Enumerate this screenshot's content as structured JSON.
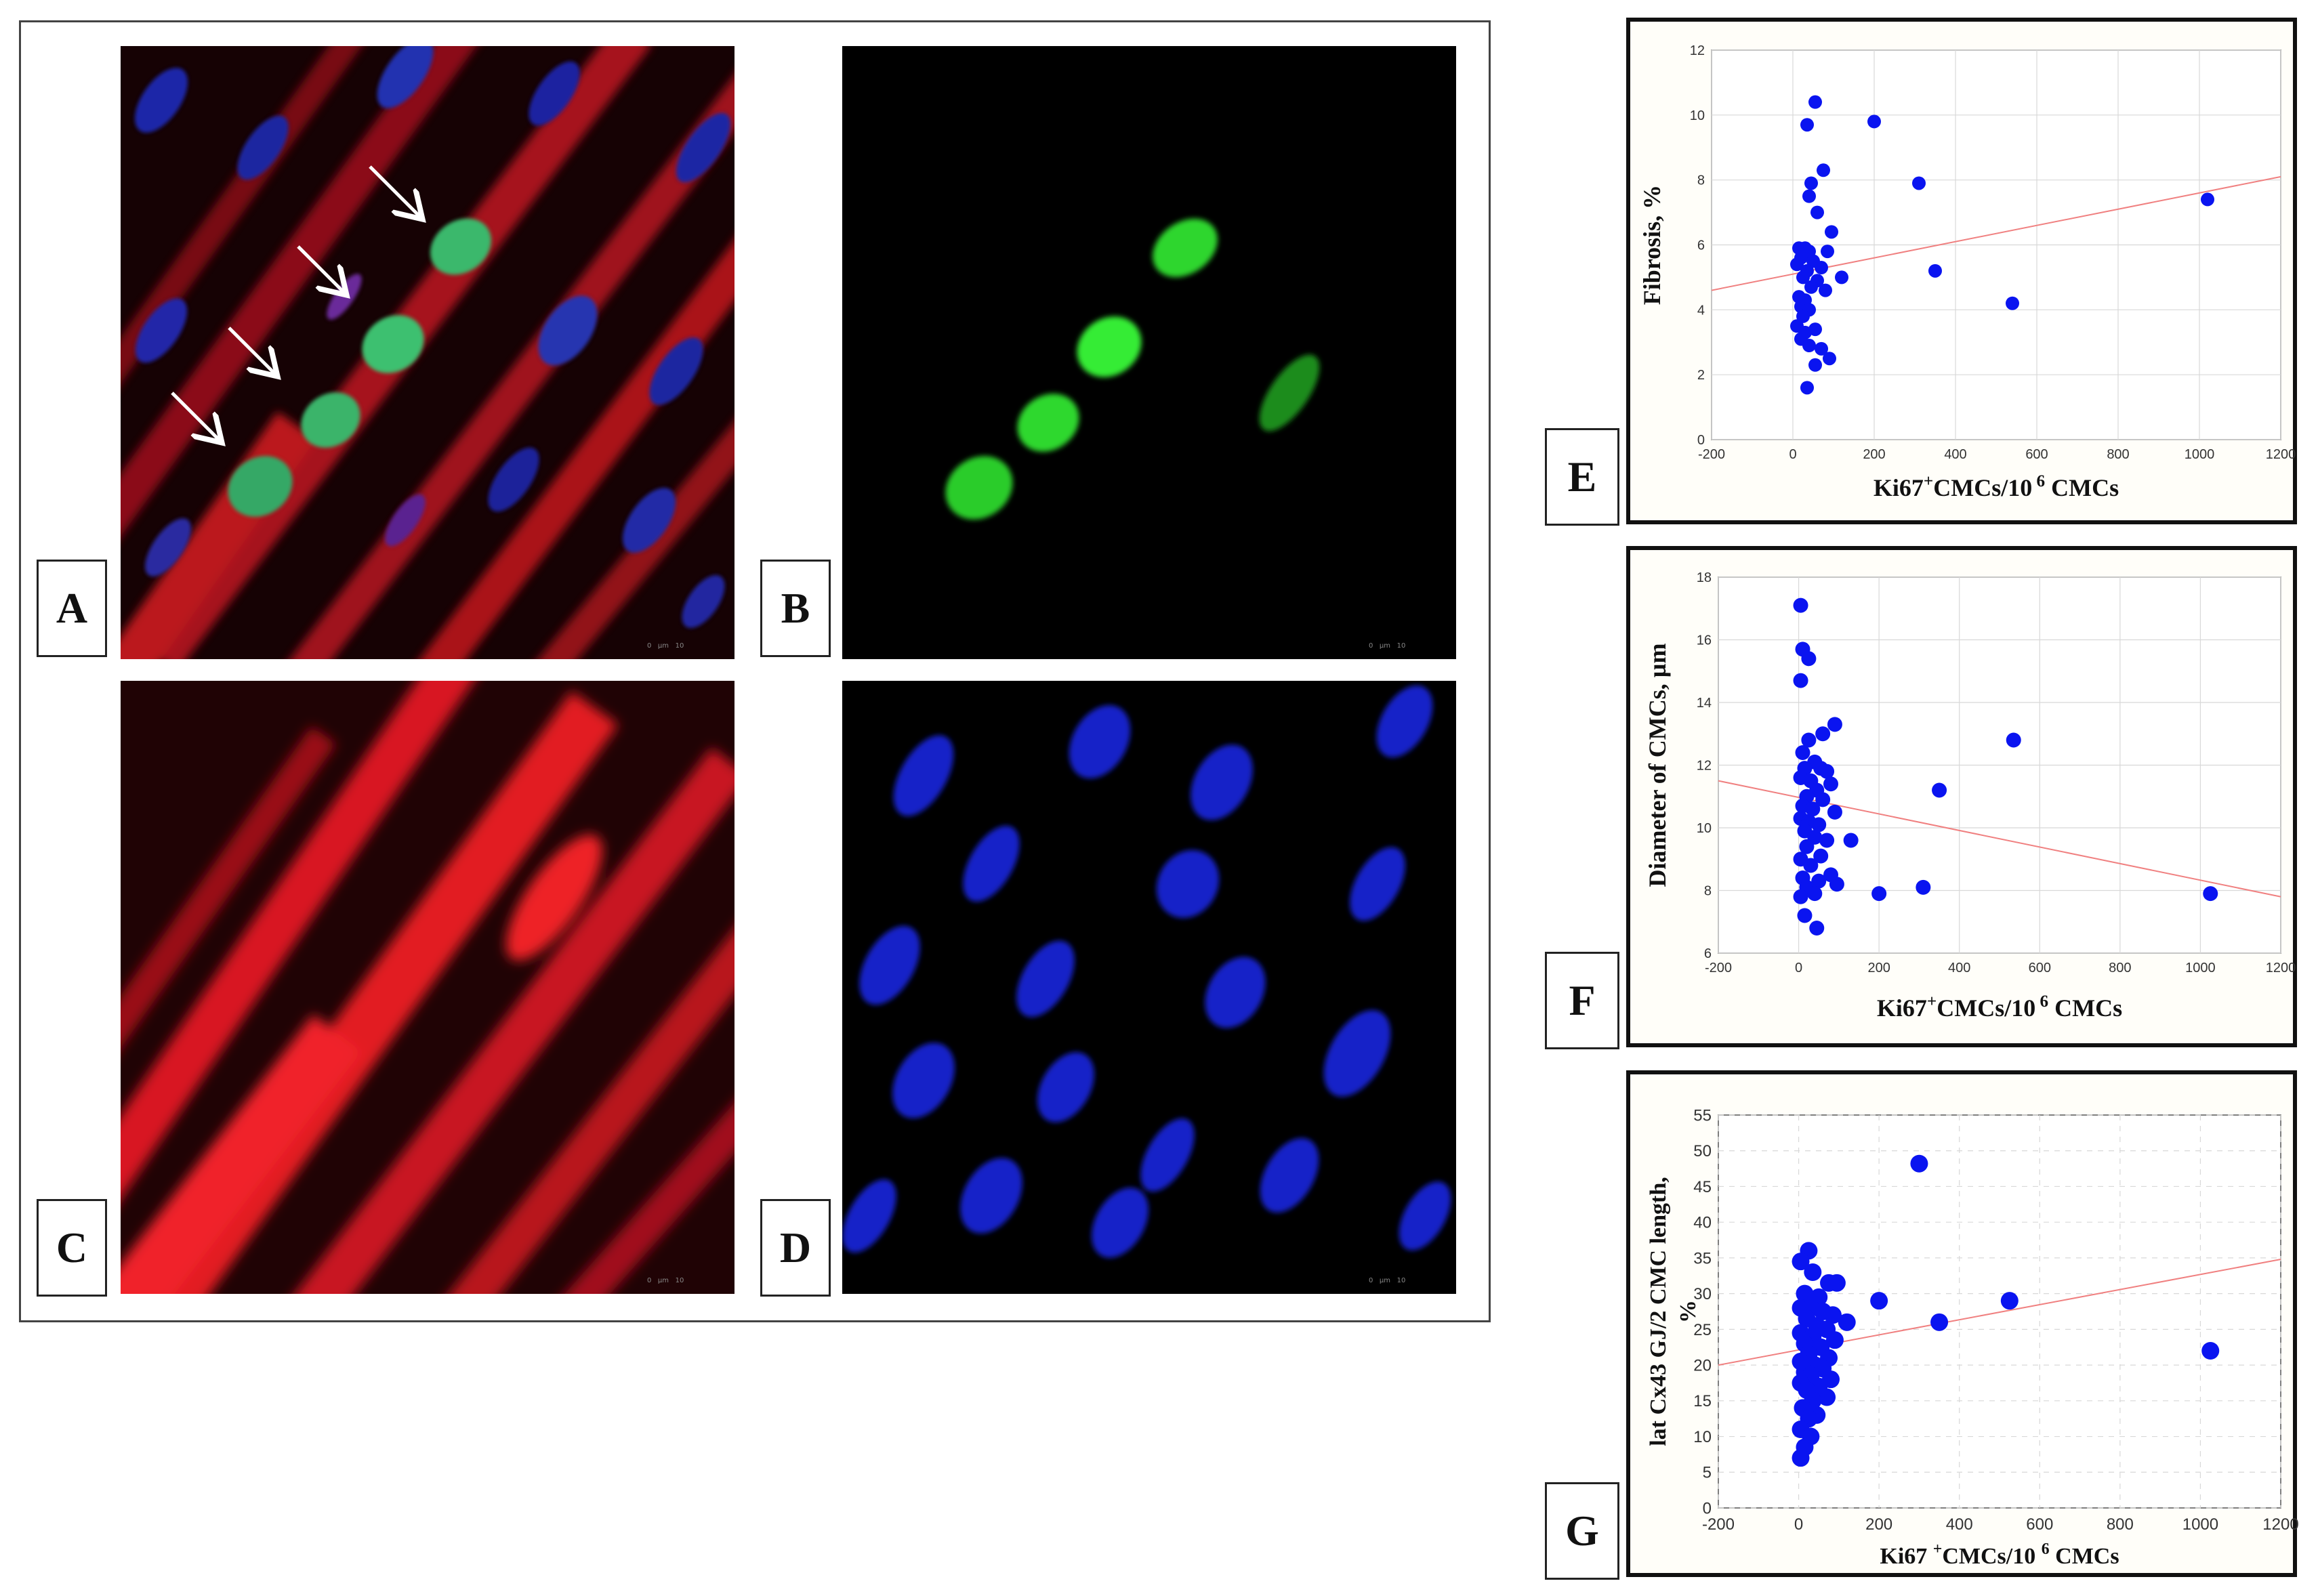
{
  "panels": {
    "a": "A",
    "b": "B",
    "c": "C",
    "d": "D",
    "e": "E",
    "f": "F",
    "g": "G"
  },
  "scale_bar": {
    "zero": "0",
    "unit": "µm",
    "end": "10"
  },
  "colors": {
    "red": "#e01818",
    "green": "#3cf23c",
    "blue": "#1626d6",
    "point": "#0a14f0",
    "trend": "#f08080"
  },
  "chart_data": [
    {
      "id": "E",
      "type": "scatter",
      "ylabel": "Fibrosis, %",
      "xlabel_parts": [
        "Ki67",
        "+",
        "CMCs/10",
        "6",
        "CMCs"
      ],
      "xlim": [
        -200,
        1200
      ],
      "ylim": [
        0,
        12
      ],
      "xticks": [
        -200,
        0,
        200,
        400,
        600,
        800,
        1000,
        1200
      ],
      "yticks": [
        0,
        2,
        4,
        6,
        8,
        10,
        12
      ],
      "grid": true,
      "trend": {
        "x": [
          -200,
          1200
        ],
        "y": [
          4.6,
          8.1
        ]
      },
      "points": [
        [
          55,
          10.4
        ],
        [
          35,
          9.7
        ],
        [
          200,
          9.8
        ],
        [
          75,
          8.3
        ],
        [
          45,
          7.9
        ],
        [
          40,
          7.5
        ],
        [
          310,
          7.9
        ],
        [
          1020,
          7.4
        ],
        [
          60,
          7.0
        ],
        [
          95,
          6.4
        ],
        [
          15,
          5.9
        ],
        [
          30,
          5.9
        ],
        [
          40,
          5.8
        ],
        [
          85,
          5.8
        ],
        [
          20,
          5.6
        ],
        [
          50,
          5.5
        ],
        [
          10,
          5.4
        ],
        [
          70,
          5.3
        ],
        [
          35,
          5.2
        ],
        [
          120,
          5.0
        ],
        [
          350,
          5.2
        ],
        [
          25,
          5.0
        ],
        [
          60,
          4.9
        ],
        [
          45,
          4.7
        ],
        [
          80,
          4.6
        ],
        [
          15,
          4.4
        ],
        [
          30,
          4.3
        ],
        [
          20,
          4.1
        ],
        [
          40,
          4.0
        ],
        [
          25,
          3.8
        ],
        [
          540,
          4.2
        ],
        [
          10,
          3.5
        ],
        [
          30,
          3.3
        ],
        [
          55,
          3.4
        ],
        [
          20,
          3.1
        ],
        [
          40,
          2.9
        ],
        [
          70,
          2.8
        ],
        [
          90,
          2.5
        ],
        [
          55,
          2.3
        ],
        [
          35,
          1.6
        ]
      ]
    },
    {
      "id": "F",
      "type": "scatter",
      "ylabel": "Diameter of CMCs,  µm",
      "xlabel_parts": [
        "Ki67",
        "+",
        "CMCs/10",
        "6",
        "CMCs"
      ],
      "xlim": [
        -200,
        1200
      ],
      "ylim": [
        6,
        18
      ],
      "xticks": [
        -200,
        0,
        200,
        400,
        600,
        800,
        1000,
        1200
      ],
      "yticks": [
        6,
        8,
        10,
        12,
        14,
        16,
        18
      ],
      "grid": true,
      "trend": {
        "x": [
          -200,
          1200
        ],
        "y": [
          11.5,
          7.8
        ]
      },
      "points": [
        [
          5,
          17.1
        ],
        [
          10,
          15.7
        ],
        [
          25,
          15.4
        ],
        [
          5,
          14.7
        ],
        [
          90,
          13.3
        ],
        [
          60,
          13.0
        ],
        [
          25,
          12.8
        ],
        [
          10,
          12.4
        ],
        [
          535,
          12.8
        ],
        [
          40,
          12.1
        ],
        [
          15,
          11.9
        ],
        [
          55,
          11.9
        ],
        [
          70,
          11.8
        ],
        [
          5,
          11.6
        ],
        [
          30,
          11.5
        ],
        [
          80,
          11.4
        ],
        [
          45,
          11.2
        ],
        [
          20,
          11.0
        ],
        [
          350,
          11.2
        ],
        [
          60,
          10.9
        ],
        [
          10,
          10.7
        ],
        [
          35,
          10.6
        ],
        [
          90,
          10.5
        ],
        [
          5,
          10.3
        ],
        [
          25,
          10.2
        ],
        [
          50,
          10.1
        ],
        [
          15,
          9.9
        ],
        [
          40,
          9.7
        ],
        [
          70,
          9.6
        ],
        [
          130,
          9.6
        ],
        [
          20,
          9.4
        ],
        [
          55,
          9.1
        ],
        [
          5,
          9.0
        ],
        [
          30,
          8.8
        ],
        [
          80,
          8.5
        ],
        [
          10,
          8.4
        ],
        [
          50,
          8.3
        ],
        [
          95,
          8.2
        ],
        [
          20,
          8.1
        ],
        [
          200,
          7.9
        ],
        [
          310,
          8.1
        ],
        [
          40,
          7.9
        ],
        [
          5,
          7.8
        ],
        [
          1025,
          7.9
        ],
        [
          15,
          7.2
        ],
        [
          45,
          6.8
        ]
      ]
    },
    {
      "id": "G",
      "type": "scatter",
      "ylabel_lines": [
        "lat Cx43 GJ/2 CMC length,",
        "%"
      ],
      "xlabel_parts": [
        "Ki67 ",
        "+",
        "CMCs/10 ",
        "6",
        "CMCs"
      ],
      "xlim": [
        -200,
        1200
      ],
      "ylim": [
        0,
        55
      ],
      "xticks": [
        -200,
        0,
        200,
        400,
        600,
        800,
        1000,
        1200
      ],
      "yticks": [
        0,
        5,
        10,
        15,
        20,
        25,
        30,
        35,
        40,
        45,
        50,
        55
      ],
      "grid": true,
      "trend": {
        "x": [
          -200,
          1200
        ],
        "y": [
          20.0,
          34.8
        ]
      },
      "points": [
        [
          300,
          48.2
        ],
        [
          25,
          36.0
        ],
        [
          5,
          34.5
        ],
        [
          35,
          33.0
        ],
        [
          75,
          31.5
        ],
        [
          95,
          31.5
        ],
        [
          15,
          30.0
        ],
        [
          50,
          29.5
        ],
        [
          200,
          29.0
        ],
        [
          525,
          29.0
        ],
        [
          5,
          28.0
        ],
        [
          30,
          28.0
        ],
        [
          60,
          27.5
        ],
        [
          85,
          27.0
        ],
        [
          120,
          26.0
        ],
        [
          350,
          26.0
        ],
        [
          20,
          26.5
        ],
        [
          45,
          25.5
        ],
        [
          70,
          25.0
        ],
        [
          5,
          24.5
        ],
        [
          35,
          24.0
        ],
        [
          90,
          23.5
        ],
        [
          15,
          23.0
        ],
        [
          55,
          22.5
        ],
        [
          1025,
          22.0
        ],
        [
          25,
          21.5
        ],
        [
          75,
          21.0
        ],
        [
          5,
          20.5
        ],
        [
          40,
          20.0
        ],
        [
          60,
          19.5
        ],
        [
          15,
          19.0
        ],
        [
          30,
          18.5
        ],
        [
          80,
          18.0
        ],
        [
          5,
          17.5
        ],
        [
          50,
          17.0
        ],
        [
          20,
          16.5
        ],
        [
          70,
          15.5
        ],
        [
          35,
          15.0
        ],
        [
          10,
          14.0
        ],
        [
          45,
          13.0
        ],
        [
          25,
          12.5
        ],
        [
          5,
          11.0
        ],
        [
          30,
          10.0
        ],
        [
          15,
          8.5
        ],
        [
          5,
          7.0
        ]
      ]
    }
  ]
}
